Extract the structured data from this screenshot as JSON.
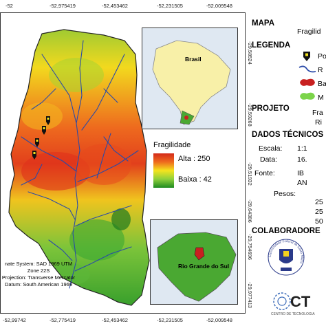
{
  "top_coords": [
    "-52",
    "-52,975419",
    "-52,453462",
    "-52,231505",
    "-52,009548"
  ],
  "right_coords": [
    "-29,58524",
    "-29,59268",
    "-29,51932",
    "-29,64386",
    "-29,754696",
    "-29,977413"
  ],
  "bottom_coords": [
    "-52,99742",
    "-52,775419",
    "-52,453462",
    "-52,231505",
    "-52,009548"
  ],
  "inset_brazil": {
    "label": "Brasil"
  },
  "inset_rs": {
    "label": "Rio Grande do Sul"
  },
  "fragilidade": {
    "title": "Fragilidade",
    "alta": "Alta : 250",
    "baixa": "Baixa : 42"
  },
  "map_info": {
    "line1": "nate System: SAD 1969 UTM Zone 22S",
    "line2": "Projection: Transverse Mercator",
    "line3": "Datum: South American 1969"
  },
  "panel": {
    "mapa_heading": "MAPA",
    "mapa_value": "Fragilid",
    "legenda_heading": "LEGENDA",
    "legend_items": [
      {
        "icon": "pin-icon",
        "label": "Po"
      },
      {
        "icon": "river-icon",
        "label": "R"
      },
      {
        "icon": "basin-icon",
        "label": "Ba"
      },
      {
        "icon": "municipality-icon",
        "label": "M"
      }
    ],
    "projeto_heading": "PROJETO",
    "projeto_line1": "Fra",
    "projeto_line2": "Ri",
    "dados_heading": "DADOS TÉCNICOS",
    "escala_label": "Escala:",
    "escala_value": "1:1",
    "data_label": "Data:",
    "data_value": "16.",
    "fonte_label": "Fonte:",
    "fonte_value1": "IB",
    "fonte_value2": "AN",
    "pesos_label": "Pesos:",
    "pesos_values": [
      "25",
      "25",
      "50"
    ],
    "colab_heading": "COLABORADORE",
    "ufsm_text": "Universidade Federal de Santa Maria",
    "ct_text": "CT",
    "ct_sub": "CENTRO DE TECNOLOGIA"
  },
  "colors": {
    "alta": "#d42a1a",
    "baixa": "#1e8a20",
    "river": "#2a4aa8",
    "water": "#dfe8f2"
  }
}
